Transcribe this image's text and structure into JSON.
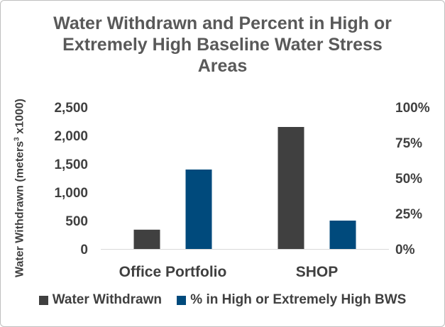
{
  "chart_data": {
    "type": "bar",
    "title": "Water Withdrawn and Percent in High or Extremely High Baseline Water Stress Areas",
    "title_lines": [
      "Water Withdrawn and Percent in High or",
      "Extremely High Baseline Water Stress",
      "Areas"
    ],
    "categories": [
      "Office Portfolio",
      "SHOP"
    ],
    "ylabel_main": "Water Withdrawn (meters",
    "ylabel_sup": "3",
    "ylabel_tail": " x1000)",
    "ylim": [
      0,
      2500
    ],
    "y_ticks": [
      0,
      500,
      1000,
      1500,
      2000,
      2500
    ],
    "y_tick_labels": [
      "0",
      "500",
      "1,000",
      "1,500",
      "2,000",
      "2,500"
    ],
    "y2lim": [
      0,
      100
    ],
    "y2_ticks": [
      0,
      25,
      50,
      75,
      100
    ],
    "y2_tick_labels": [
      "0%",
      "25%",
      "50%",
      "75%",
      "100%"
    ],
    "series": [
      {
        "name": "Water Withdrawn",
        "axis": "left",
        "color": "#404040",
        "values": [
          340,
          2150
        ]
      },
      {
        "name": "% in High or Extremely High BWS",
        "axis": "right",
        "color": "#004a7c",
        "values": [
          56,
          20
        ]
      }
    ],
    "legend_position": "bottom"
  }
}
